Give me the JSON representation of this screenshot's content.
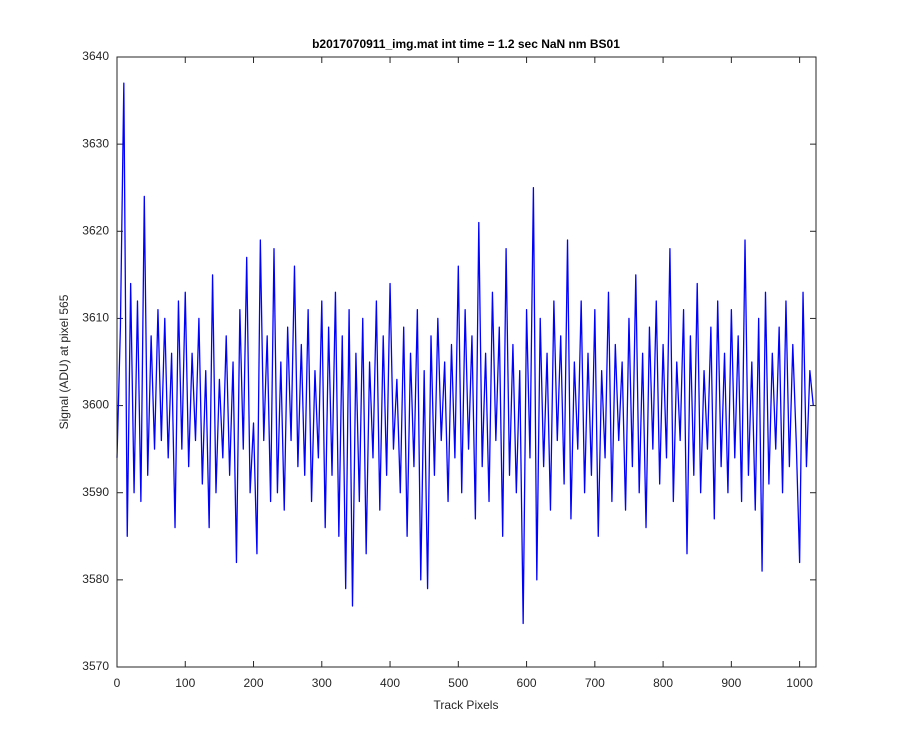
{
  "chart_data": {
    "type": "line",
    "title": "b2017070911_img.mat int time = 1.2 sec  NaN nm BS01",
    "x_label": "Track Pixels",
    "y_label": "Signal (ADU) at pixel 565",
    "xlim": [
      0,
      1024
    ],
    "ylim": [
      3570,
      3640
    ],
    "xticks": [
      0,
      100,
      200,
      300,
      400,
      500,
      600,
      700,
      800,
      900,
      1000
    ],
    "yticks": [
      3570,
      3580,
      3590,
      3600,
      3610,
      3620,
      3630,
      3640
    ],
    "grid": false,
    "box": true,
    "x": [
      0,
      5,
      10,
      15,
      20,
      25,
      30,
      35,
      40,
      45,
      50,
      55,
      60,
      65,
      70,
      75,
      80,
      85,
      90,
      95,
      100,
      105,
      110,
      115,
      120,
      125,
      130,
      135,
      140,
      145,
      150,
      155,
      160,
      165,
      170,
      175,
      180,
      185,
      190,
      195,
      200,
      205,
      210,
      215,
      220,
      225,
      230,
      235,
      240,
      245,
      250,
      255,
      260,
      265,
      270,
      275,
      280,
      285,
      290,
      295,
      300,
      305,
      310,
      315,
      320,
      325,
      330,
      335,
      340,
      345,
      350,
      355,
      360,
      365,
      370,
      375,
      380,
      385,
      390,
      395,
      400,
      405,
      410,
      415,
      420,
      425,
      430,
      435,
      440,
      445,
      450,
      455,
      460,
      465,
      470,
      475,
      480,
      485,
      490,
      495,
      500,
      505,
      510,
      515,
      520,
      525,
      530,
      535,
      540,
      545,
      550,
      555,
      560,
      565,
      570,
      575,
      580,
      585,
      590,
      595,
      600,
      605,
      610,
      615,
      620,
      625,
      630,
      635,
      640,
      645,
      650,
      655,
      660,
      665,
      670,
      675,
      680,
      685,
      690,
      695,
      700,
      705,
      710,
      715,
      720,
      725,
      730,
      735,
      740,
      745,
      750,
      755,
      760,
      765,
      770,
      775,
      780,
      785,
      790,
      795,
      800,
      805,
      810,
      815,
      820,
      825,
      830,
      835,
      840,
      845,
      850,
      855,
      860,
      865,
      870,
      875,
      880,
      885,
      890,
      895,
      900,
      905,
      910,
      915,
      920,
      925,
      930,
      935,
      940,
      945,
      950,
      955,
      960,
      965,
      970,
      975,
      980,
      985,
      990,
      995,
      1000,
      1005,
      1010,
      1015,
      1020
    ],
    "series": [
      {
        "name": "Signal",
        "color": "#0000ff",
        "values": [
          3594,
          3609,
          3637,
          3585,
          3614,
          3590,
          3612,
          3589,
          3624,
          3592,
          3608,
          3595,
          3611,
          3596,
          3610,
          3594,
          3606,
          3586,
          3612,
          3595,
          3613,
          3593,
          3606,
          3596,
          3610,
          3591,
          3604,
          3586,
          3615,
          3590,
          3603,
          3594,
          3608,
          3592,
          3605,
          3582,
          3611,
          3595,
          3617,
          3590,
          3598,
          3583,
          3619,
          3596,
          3608,
          3589,
          3618,
          3590,
          3605,
          3588,
          3609,
          3596,
          3616,
          3593,
          3607,
          3592,
          3611,
          3589,
          3604,
          3594,
          3612,
          3586,
          3609,
          3592,
          3613,
          3585,
          3608,
          3579,
          3611,
          3577,
          3606,
          3589,
          3610,
          3583,
          3605,
          3594,
          3612,
          3588,
          3608,
          3592,
          3614,
          3595,
          3603,
          3590,
          3609,
          3585,
          3606,
          3593,
          3611,
          3580,
          3604,
          3579,
          3608,
          3592,
          3610,
          3596,
          3605,
          3589,
          3607,
          3594,
          3616,
          3590,
          3611,
          3595,
          3608,
          3587,
          3621,
          3593,
          3606,
          3589,
          3613,
          3596,
          3609,
          3585,
          3618,
          3592,
          3607,
          3590,
          3604,
          3575,
          3611,
          3594,
          3625,
          3580,
          3610,
          3593,
          3606,
          3588,
          3612,
          3596,
          3608,
          3591,
          3619,
          3587,
          3605,
          3595,
          3612,
          3590,
          3606,
          3592,
          3611,
          3585,
          3604,
          3594,
          3613,
          3589,
          3607,
          3596,
          3605,
          3588,
          3610,
          3593,
          3615,
          3590,
          3606,
          3586,
          3609,
          3595,
          3612,
          3591,
          3607,
          3594,
          3618,
          3589,
          3605,
          3596,
          3611,
          3583,
          3608,
          3592,
          3614,
          3590,
          3604,
          3595,
          3609,
          3587,
          3612,
          3593,
          3606,
          3590,
          3611,
          3594,
          3608,
          3589,
          3619,
          3592,
          3605,
          3588,
          3610,
          3581,
          3613,
          3591,
          3606,
          3595,
          3609,
          3590,
          3612,
          3593,
          3607,
          3596,
          3582,
          3613,
          3593,
          3604,
          3600
        ]
      }
    ]
  }
}
